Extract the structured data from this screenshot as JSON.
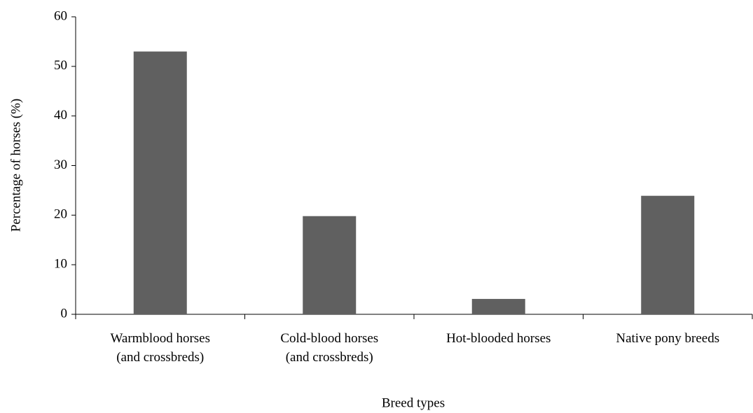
{
  "chart_data": {
    "type": "bar",
    "categories": [
      "Warmblood horses\n(and crossbreds)",
      "Cold-blood horses\n(and crossbreds)",
      "Hot-blooded horses",
      "Native pony breeds"
    ],
    "values": [
      53,
      19.8,
      3.1,
      23.9
    ],
    "color": "#606060",
    "ylim": [
      0,
      60
    ],
    "yticks": [
      0,
      10,
      20,
      30,
      40,
      50,
      60
    ],
    "xlabel": "Breed types",
    "ylabel": "Percentage of horses (%)",
    "grid": false
  }
}
